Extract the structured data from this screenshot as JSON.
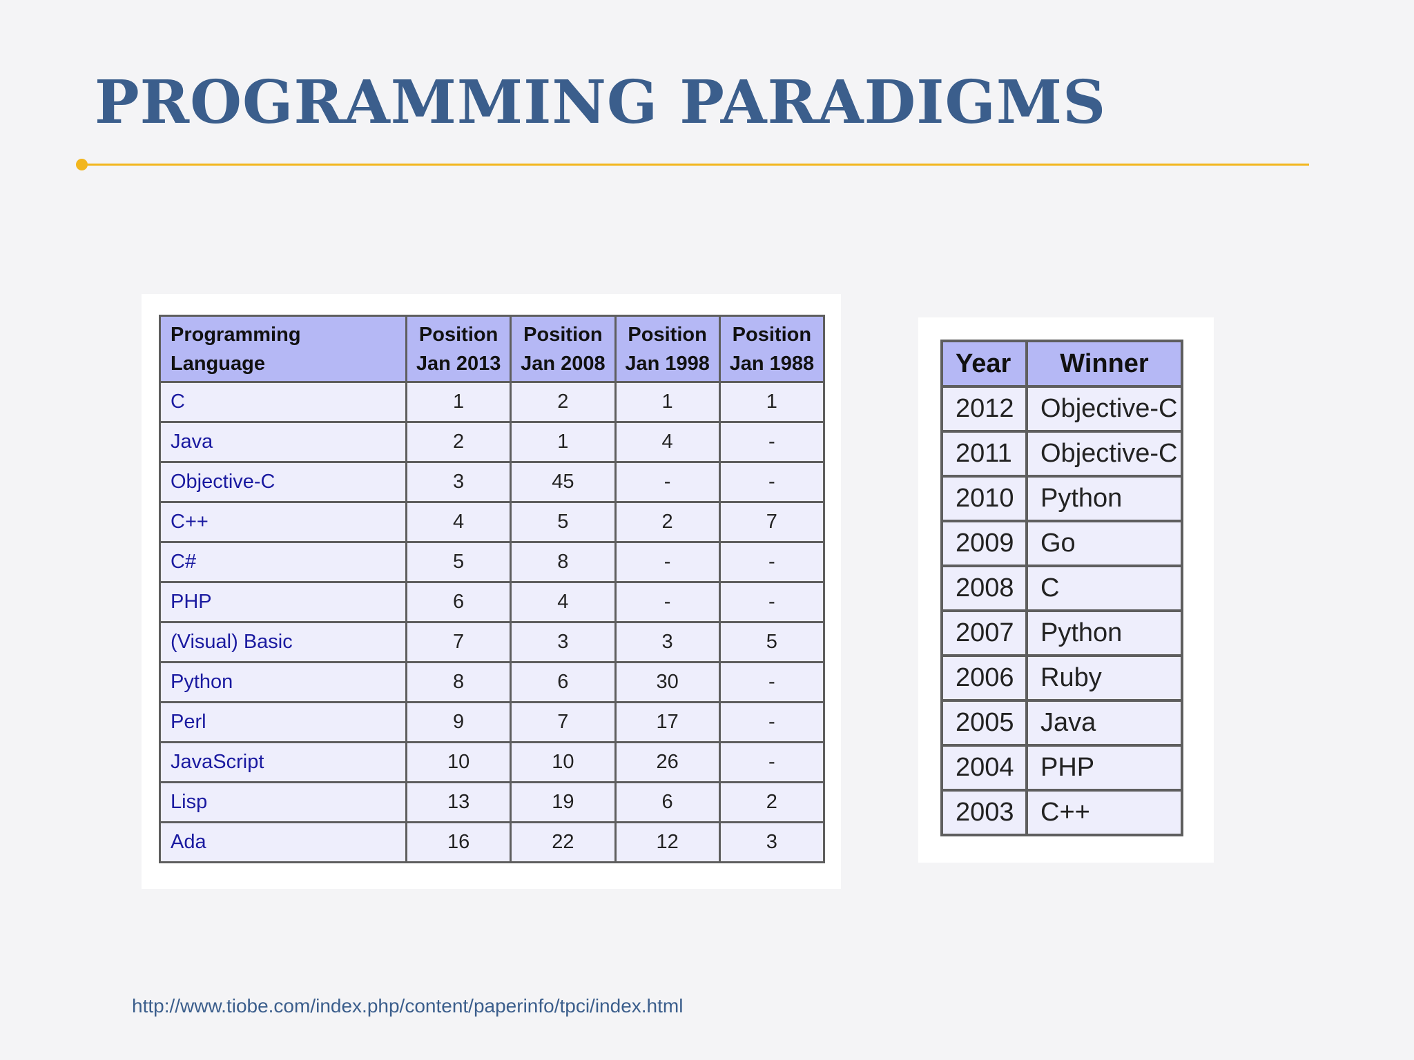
{
  "title": "PROGRAMMING PARADIGMS",
  "colors": {
    "title": "#3b5e8c",
    "accent_line": "#f2b61e",
    "header_bg": "#b5b8f5",
    "cell_bg": "#eeeefc",
    "link_text": "#1a1aa0",
    "source_text": "#3b5e8c"
  },
  "ranking_table": {
    "headers": {
      "language": "Programming Language",
      "pos2013": [
        "Position",
        "Jan 2013"
      ],
      "pos2008": [
        "Position",
        "Jan 2008"
      ],
      "pos1998": [
        "Position",
        "Jan 1998"
      ],
      "pos1988": [
        "Position",
        "Jan 1988"
      ]
    },
    "rows": [
      {
        "language": "C",
        "p2013": "1",
        "p2008": "2",
        "p1998": "1",
        "p1988": "1"
      },
      {
        "language": "Java",
        "p2013": "2",
        "p2008": "1",
        "p1998": "4",
        "p1988": "-"
      },
      {
        "language": "Objective-C",
        "p2013": "3",
        "p2008": "45",
        "p1998": "-",
        "p1988": "-"
      },
      {
        "language": "C++",
        "p2013": "4",
        "p2008": "5",
        "p1998": "2",
        "p1988": "7"
      },
      {
        "language": "C#",
        "p2013": "5",
        "p2008": "8",
        "p1998": "-",
        "p1988": "-"
      },
      {
        "language": "PHP",
        "p2013": "6",
        "p2008": "4",
        "p1998": "-",
        "p1988": "-"
      },
      {
        "language": "(Visual) Basic",
        "p2013": "7",
        "p2008": "3",
        "p1998": "3",
        "p1988": "5"
      },
      {
        "language": "Python",
        "p2013": "8",
        "p2008": "6",
        "p1998": "30",
        "p1988": "-"
      },
      {
        "language": "Perl",
        "p2013": "9",
        "p2008": "7",
        "p1998": "17",
        "p1988": "-"
      },
      {
        "language": "JavaScript",
        "p2013": "10",
        "p2008": "10",
        "p1998": "26",
        "p1988": "-"
      },
      {
        "language": "Lisp",
        "p2013": "13",
        "p2008": "19",
        "p1998": "6",
        "p1988": "2"
      },
      {
        "language": "Ada",
        "p2013": "16",
        "p2008": "22",
        "p1998": "12",
        "p1988": "3"
      }
    ]
  },
  "winners_table": {
    "headers": {
      "year": "Year",
      "winner": "Winner"
    },
    "rows": [
      {
        "year": "2012",
        "winner": "Objective-C"
      },
      {
        "year": "2011",
        "winner": "Objective-C"
      },
      {
        "year": "2010",
        "winner": "Python"
      },
      {
        "year": "2009",
        "winner": "Go"
      },
      {
        "year": "2008",
        "winner": "C"
      },
      {
        "year": "2007",
        "winner": "Python"
      },
      {
        "year": "2006",
        "winner": "Ruby"
      },
      {
        "year": "2005",
        "winner": "Java"
      },
      {
        "year": "2004",
        "winner": "PHP"
      },
      {
        "year": "2003",
        "winner": "C++"
      }
    ]
  },
  "source_url": "http://www.tiobe.com/index.php/content/paperinfo/tpci/index.html"
}
